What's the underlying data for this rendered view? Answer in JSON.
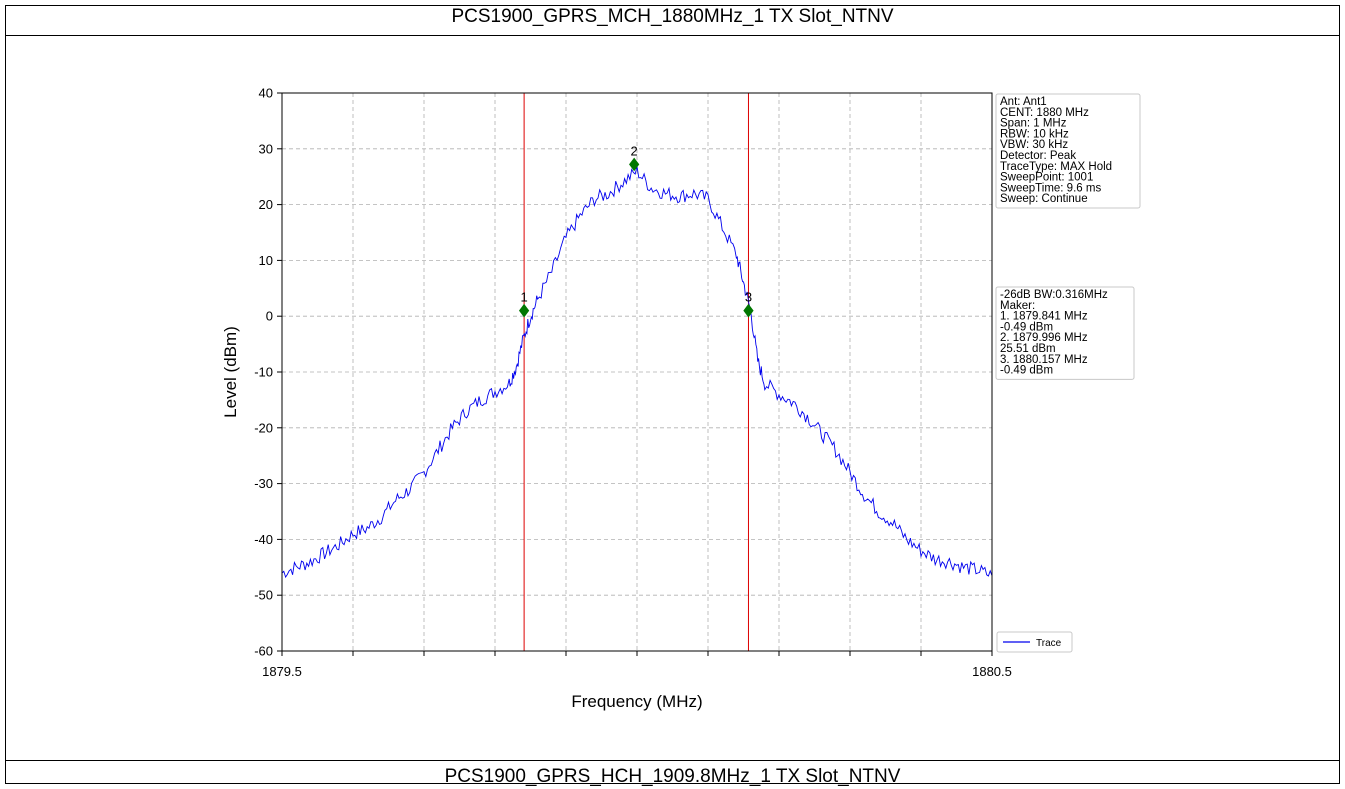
{
  "header": {
    "title": "PCS1900_GPRS_MCH_1880MHz_1 TX Slot_NTNV"
  },
  "footer": {
    "title": "PCS1900_GPRS_HCH_1909.8MHz_1 TX Slot_NTNV"
  },
  "colors": {
    "trace": "#0000ee",
    "lines": "#dd0000",
    "marker": "#007700",
    "grid": "#b0b0b0"
  },
  "chart_data": {
    "type": "line",
    "xlabel": "Frequency (MHz)",
    "ylabel": "Level (dBm)",
    "xlim": [
      1879.5,
      1880.5
    ],
    "ylim": [
      -60,
      40
    ],
    "x_ticks": [
      1879.5,
      1880.5
    ],
    "x_tick_labels": [
      "1879.5",
      "1880.5"
    ],
    "y_ticks": [
      -60,
      -50,
      -40,
      -30,
      -20,
      -10,
      0,
      10,
      20,
      30,
      40
    ],
    "grid": true,
    "series": [
      {
        "name": "Trace",
        "x": [
          1879.5,
          1879.52,
          1879.54,
          1879.56,
          1879.58,
          1879.6,
          1879.62,
          1879.64,
          1879.66,
          1879.68,
          1879.7,
          1879.72,
          1879.74,
          1879.76,
          1879.78,
          1879.8,
          1879.82,
          1879.83,
          1879.84,
          1879.85,
          1879.86,
          1879.88,
          1879.9,
          1879.92,
          1879.94,
          1879.96,
          1879.98,
          1880.0,
          1880.02,
          1880.04,
          1880.06,
          1880.08,
          1880.1,
          1880.12,
          1880.14,
          1880.15,
          1880.16,
          1880.17,
          1880.18,
          1880.2,
          1880.22,
          1880.24,
          1880.26,
          1880.28,
          1880.3,
          1880.32,
          1880.34,
          1880.36,
          1880.38,
          1880.4,
          1880.42,
          1880.44,
          1880.46,
          1880.48,
          1880.5
        ],
        "y": [
          -46,
          -45,
          -44,
          -42.5,
          -41,
          -39,
          -38,
          -36,
          -33,
          -31,
          -28,
          -24,
          -20,
          -17,
          -15,
          -13.5,
          -12,
          -9,
          -4,
          0,
          3,
          8,
          14,
          18,
          21,
          22,
          24,
          26,
          23,
          22,
          21.5,
          22,
          21,
          16,
          11,
          6,
          1,
          -8,
          -12,
          -14,
          -15.5,
          -18,
          -21,
          -24,
          -28,
          -32,
          -35,
          -37,
          -40,
          -42,
          -43.5,
          -44,
          -45,
          -45.5,
          -46.5
        ]
      }
    ],
    "markers": [
      {
        "label": "1",
        "x": 1879.841,
        "y": 1
      },
      {
        "label": "2",
        "x": 1879.996,
        "y": 27.2
      },
      {
        "label": "3",
        "x": 1880.157,
        "y": 1
      }
    ],
    "vlines": [
      1879.841,
      1880.157
    ],
    "legend": {
      "label": "Trace",
      "placement": "bottom-right"
    },
    "info_box": [
      "Ant: Ant1",
      "CENT: 1880 MHz",
      "Span: 1 MHz",
      "RBW: 10 kHz",
      "VBW: 30 kHz",
      "Detector: Peak",
      "TraceType: MAX Hold",
      "SweepPoint: 1001",
      "SweepTime: 9.6 ms",
      "Sweep: Continue"
    ],
    "marker_box": [
      "-26dB BW:0.316MHz",
      "Maker:",
      "1. 1879.841 MHz",
      "    -0.49 dBm",
      "2. 1879.996 MHz",
      "    25.51 dBm",
      "3. 1880.157 MHz",
      "    -0.49 dBm"
    ]
  }
}
